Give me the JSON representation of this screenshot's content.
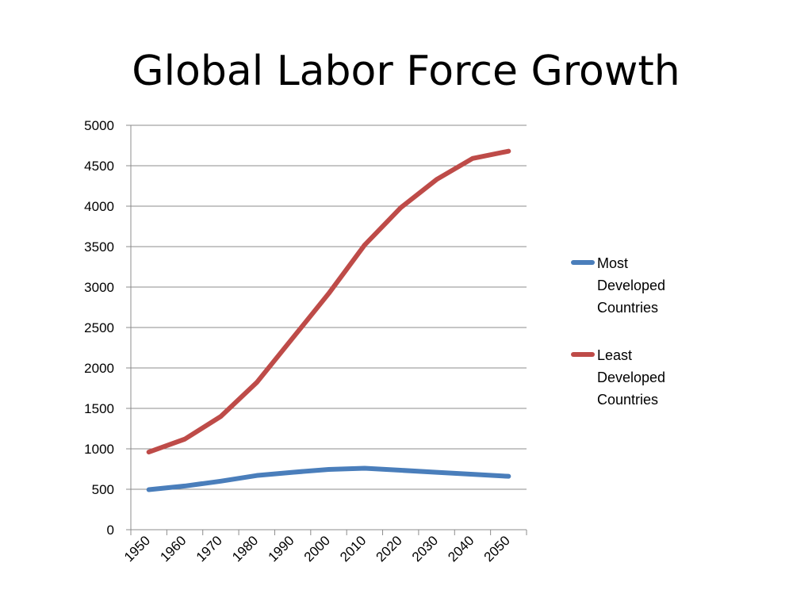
{
  "title": "Global Labor Force Growth",
  "chart_data": {
    "type": "line",
    "title": "Global Labor Force Growth",
    "xlabel": "",
    "ylabel": "",
    "x": [
      1955,
      1965,
      1975,
      1985,
      1995,
      2005,
      2015,
      2025,
      2035,
      2045,
      2055
    ],
    "x_ticks": [
      "1950",
      "1960",
      "1970",
      "1980",
      "1990",
      "2000",
      "2010",
      "2020",
      "2030",
      "2040",
      "2050"
    ],
    "y_ticks": [
      "0",
      "500",
      "1000",
      "1500",
      "2000",
      "2500",
      "3000",
      "3500",
      "4000",
      "4500",
      "5000"
    ],
    "ylim": [
      0,
      5000
    ],
    "grid": true,
    "legend_position": "right",
    "series": [
      {
        "name": "Most Developed Countries",
        "color": "#4a7ebb",
        "values": [
          495,
          540,
          600,
          670,
          710,
          745,
          760,
          735,
          710,
          685,
          660
        ]
      },
      {
        "name": "Least Developed Countries",
        "color": "#be4b48",
        "values": [
          960,
          1120,
          1400,
          1820,
          2370,
          2920,
          3520,
          3980,
          4330,
          4590,
          4680
        ]
      }
    ]
  }
}
